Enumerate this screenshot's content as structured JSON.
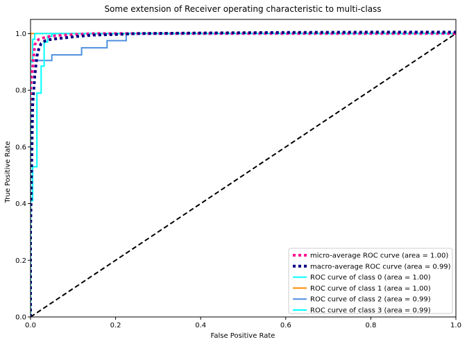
{
  "chart_data": {
    "type": "line",
    "title": "Some extension of Receiver operating characteristic to multi-class",
    "xlabel": "False Positive Rate",
    "ylabel": "True Positive Rate",
    "xlim": [
      0.0,
      1.0
    ],
    "ylim": [
      0.0,
      1.05
    ],
    "xticks": [
      0.0,
      0.2,
      0.4,
      0.6,
      0.8,
      1.0
    ],
    "yticks": [
      0.0,
      0.2,
      0.4,
      0.6,
      0.8,
      1.0
    ],
    "xtick_labels": [
      "0.0",
      "0.2",
      "0.4",
      "0.6",
      "0.8",
      "1.0"
    ],
    "ytick_labels": [
      "0.0",
      "0.2",
      "0.4",
      "0.6",
      "0.8",
      "1.0"
    ],
    "grid": false,
    "legend_position": "lower-right",
    "series": [
      {
        "name": "micro-average ROC curve (area = 1.00)",
        "color": "#ff1493",
        "style": "dotted",
        "x": [
          0.0,
          0.0,
          0.003,
          0.005,
          0.008,
          0.01,
          0.015,
          0.02,
          0.03,
          0.045,
          0.06,
          0.08,
          0.1,
          0.15,
          1.0
        ],
        "y": [
          0.0,
          0.81,
          0.85,
          0.88,
          0.93,
          0.96,
          0.975,
          0.98,
          0.985,
          0.99,
          0.993,
          0.995,
          0.997,
          1.0,
          1.0
        ]
      },
      {
        "name": "macro-average ROC curve (area = 0.99)",
        "color": "#000080",
        "style": "dotted",
        "x": [
          0.0,
          0.0,
          0.005,
          0.01,
          0.015,
          0.02,
          0.025,
          0.035,
          0.05,
          0.08,
          0.11,
          0.15,
          0.2,
          0.25,
          0.4,
          0.6,
          0.8,
          1.0
        ],
        "y": [
          0.0,
          0.3,
          0.75,
          0.85,
          0.92,
          0.95,
          0.965,
          0.975,
          0.98,
          0.985,
          0.99,
          0.995,
          0.997,
          1.0,
          1.002,
          1.004,
          1.005,
          1.005
        ]
      },
      {
        "name": "ROC curve of class 0 (area = 1.00)",
        "color": "#00ffff",
        "style": "solid",
        "x": [
          0.0,
          0.0,
          0.005,
          0.005,
          0.01,
          0.01,
          0.03,
          0.03,
          1.0
        ],
        "y": [
          0.0,
          0.9,
          0.9,
          0.98,
          0.98,
          1.0,
          1.0,
          1.0,
          1.0
        ]
      },
      {
        "name": "ROC curve of class 1 (area = 1.00)",
        "color": "#ff8c00",
        "style": "solid",
        "x": [
          0.0,
          0.0,
          1.0
        ],
        "y": [
          0.0,
          1.0,
          1.0
        ]
      },
      {
        "name": "ROC curve of class 2 (area = 0.99)",
        "color": "#4d8fe0",
        "style": "solid",
        "x": [
          0.0,
          0.0,
          0.05,
          0.05,
          0.12,
          0.12,
          0.18,
          0.18,
          0.225,
          0.225,
          1.0
        ],
        "y": [
          0.0,
          0.905,
          0.905,
          0.925,
          0.925,
          0.95,
          0.95,
          0.975,
          0.975,
          1.0,
          1.0
        ]
      },
      {
        "name": "ROC curve of class 3 (area = 0.99)",
        "color": "#00ffff",
        "style": "solid",
        "x": [
          0.0,
          0.0,
          0.005,
          0.005,
          0.015,
          0.015,
          0.025,
          0.025,
          0.032,
          0.032,
          0.04,
          0.04,
          0.05,
          0.05,
          1.0
        ],
        "y": [
          0.0,
          0.41,
          0.41,
          0.53,
          0.53,
          0.79,
          0.79,
          0.885,
          0.885,
          0.97,
          0.97,
          0.99,
          0.99,
          1.0,
          1.0
        ]
      }
    ],
    "reference_line": {
      "color": "#000000",
      "style": "dashed",
      "x": [
        0.0,
        1.0
      ],
      "y": [
        0.0,
        1.0
      ]
    }
  }
}
